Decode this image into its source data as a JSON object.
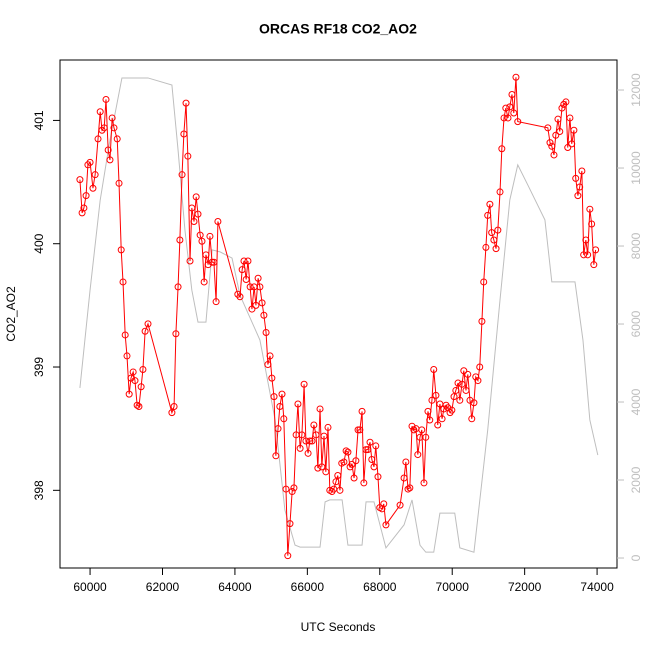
{
  "chart_data": {
    "type": "line",
    "title": "ORCAS RF18 CO2_AO2",
    "xlabel": "UTC Seconds",
    "ylabel": "CO2_AO2",
    "xlim": [
      59170,
      74550
    ],
    "xticks": [
      60000,
      62000,
      64000,
      66000,
      68000,
      70000,
      72000,
      74000
    ],
    "ylim": [
      397.37,
      401.49
    ],
    "yticks": [
      398,
      399,
      400,
      401
    ],
    "y2lim": [
      -256,
      12770
    ],
    "y2ticks": [
      0,
      2000,
      4000,
      6000,
      8000,
      10000,
      12000
    ],
    "y2color": "#bebebe",
    "series": [
      {
        "color": "#ff0000",
        "markers": true,
        "x": [
          59720,
          59780,
          59830,
          59890,
          59940,
          60000,
          60080,
          60140,
          60220,
          60280,
          60330,
          60390,
          60440,
          60500,
          60550,
          60610,
          60660,
          60750,
          60800,
          60860,
          60910,
          60970,
          61020,
          61080,
          61130,
          61190,
          61240,
          61300,
          61350,
          61410,
          61460,
          61520,
          61600,
          62260,
          62320,
          62370,
          62430,
          62480,
          62540,
          62590,
          62650,
          62700,
          62760,
          62810,
          62870,
          62930,
          62980,
          63040,
          63090,
          63150,
          63200,
          63260,
          63310,
          63370,
          63420,
          63480,
          63530,
          64080,
          64140,
          64200,
          64250,
          64310,
          64360,
          64420,
          64470,
          64530,
          64580,
          64640,
          64690,
          64750,
          64800,
          64860,
          64910,
          64970,
          65020,
          65080,
          65130,
          65190,
          65240,
          65300,
          65350,
          65410,
          65460,
          65520,
          65580,
          65630,
          65690,
          65740,
          65800,
          65850,
          65910,
          65960,
          66020,
          66070,
          66130,
          66180,
          66240,
          66290,
          66350,
          66400,
          66460,
          66510,
          66570,
          66620,
          66680,
          66730,
          66790,
          66840,
          66900,
          66950,
          67010,
          67070,
          67120,
          67180,
          67230,
          67290,
          67340,
          67400,
          67450,
          67510,
          67560,
          67620,
          67670,
          67730,
          67780,
          67840,
          67890,
          67950,
          68000,
          68060,
          68110,
          68170,
          68560,
          68670,
          68720,
          68780,
          68830,
          68890,
          68940,
          69000,
          69050,
          69110,
          69160,
          69220,
          69270,
          69330,
          69380,
          69440,
          69490,
          69550,
          69600,
          69660,
          69720,
          69770,
          69830,
          69880,
          69940,
          69990,
          70050,
          70100,
          70160,
          70210,
          70270,
          70320,
          70380,
          70430,
          70490,
          70540,
          70600,
          70650,
          70710,
          70760,
          70820,
          70870,
          70930,
          70980,
          71040,
          71090,
          71150,
          71210,
          71260,
          71320,
          71370,
          71430,
          71480,
          71540,
          71590,
          71650,
          71700,
          71760,
          71810,
          72640,
          72700,
          72750,
          72810,
          72860,
          72920,
          72970,
          73030,
          73080,
          73140,
          73190,
          73250,
          73300,
          73360,
          73410,
          73470,
          73520,
          73580,
          73630,
          73690,
          73740,
          73800,
          73850,
          73910,
          73960
        ],
        "values": [
          400.52,
          400.25,
          400.29,
          400.39,
          400.64,
          400.66,
          400.45,
          400.56,
          400.85,
          401.07,
          400.92,
          400.94,
          401.17,
          400.76,
          400.68,
          401.02,
          400.94,
          400.85,
          400.49,
          399.95,
          399.69,
          399.26,
          399.09,
          398.78,
          398.91,
          398.96,
          398.89,
          398.69,
          398.68,
          398.84,
          398.98,
          399.29,
          399.35,
          398.63,
          398.68,
          399.27,
          399.65,
          400.03,
          400.56,
          400.89,
          401.14,
          400.71,
          399.86,
          400.29,
          400.18,
          400.38,
          400.24,
          400.07,
          400.02,
          399.69,
          399.91,
          399.83,
          400.06,
          399.85,
          399.85,
          399.53,
          400.18,
          399.59,
          399.57,
          399.79,
          399.86,
          399.71,
          399.86,
          399.65,
          399.47,
          399.65,
          399.5,
          399.72,
          399.65,
          399.52,
          399.42,
          399.28,
          399.02,
          399.09,
          398.91,
          398.76,
          398.28,
          398.5,
          398.68,
          398.78,
          398.58,
          398.01,
          397.47,
          397.73,
          397.99,
          398.02,
          398.45,
          398.7,
          398.34,
          398.45,
          398.86,
          398.4,
          398.3,
          398.4,
          398.4,
          398.53,
          398.45,
          398.18,
          398.66,
          398.19,
          398.44,
          398.15,
          398.51,
          398.0,
          397.99,
          398.01,
          398.07,
          398.12,
          398.0,
          398.22,
          398.23,
          398.32,
          398.31,
          398.19,
          398.21,
          398.1,
          398.24,
          398.49,
          398.49,
          398.64,
          398.06,
          398.33,
          398.33,
          398.39,
          398.25,
          398.19,
          398.36,
          398.11,
          397.86,
          397.85,
          397.89,
          397.72,
          397.88,
          398.1,
          398.23,
          398.01,
          398.02,
          398.52,
          398.49,
          398.5,
          398.29,
          398.43,
          398.49,
          398.06,
          398.43,
          398.64,
          398.57,
          398.73,
          398.98,
          398.77,
          398.53,
          398.7,
          398.58,
          398.66,
          398.69,
          398.67,
          398.63,
          398.65,
          398.76,
          398.81,
          398.87,
          398.73,
          398.86,
          398.97,
          398.81,
          398.94,
          398.73,
          398.58,
          398.71,
          398.92,
          398.89,
          399.0,
          399.37,
          399.69,
          399.97,
          400.23,
          400.32,
          400.09,
          400.03,
          399.96,
          400.11,
          400.42,
          400.77,
          401.02,
          401.1,
          401.02,
          401.11,
          401.21,
          401.06,
          401.35,
          400.99,
          400.94,
          400.82,
          400.79,
          400.72,
          400.88,
          401.01,
          400.91,
          401.1,
          401.13,
          401.15,
          400.78,
          401.02,
          400.81,
          400.92,
          400.53,
          400.39,
          400.46,
          400.59,
          399.91,
          400.03,
          399.91,
          400.28,
          400.16,
          399.83,
          399.95
        ]
      },
      {
        "color": "#bebebe",
        "axis": "y2",
        "markers": false,
        "x": [
          59720,
          60000,
          60280,
          60550,
          60880,
          61600,
          62260,
          62430,
          62620,
          62810,
          62980,
          63200,
          63370,
          63590,
          63920,
          64140,
          64690,
          65110,
          65380,
          65660,
          65800,
          66350,
          66490,
          66620,
          66960,
          67120,
          67510,
          67620,
          67840,
          68170,
          68670,
          68890,
          69110,
          69270,
          69490,
          69660,
          70070,
          70210,
          70600,
          70980,
          71320,
          71590,
          71810,
          72090,
          72560,
          72750,
          73390,
          73610,
          73800,
          74020
        ],
        "values": [
          4360,
          6870,
          9180,
          10720,
          12310,
          12310,
          12130,
          10460,
          8410,
          6870,
          6050,
          6050,
          7900,
          7850,
          7690,
          6740,
          5590,
          3540,
          1230,
          330,
          280,
          280,
          1440,
          1490,
          1490,
          330,
          330,
          1440,
          1440,
          260,
          850,
          1490,
          330,
          150,
          150,
          1150,
          1150,
          260,
          150,
          3280,
          6620,
          9180,
          10080,
          9560,
          8670,
          7080,
          7080,
          5590,
          3540,
          2640
        ]
      }
    ]
  }
}
